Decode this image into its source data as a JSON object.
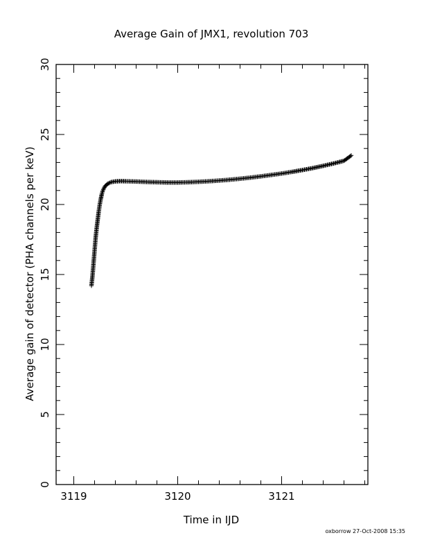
{
  "chart_data": {
    "type": "scatter",
    "title": "Average Gain of JMX1, revolution 703",
    "xlabel": "Time in IJD",
    "ylabel": "Average gain of detector (PHA channels per keV)",
    "xlim": [
      3118.83,
      3121.83
    ],
    "ylim": [
      0,
      30
    ],
    "xticks": [
      3119,
      3120,
      3121
    ],
    "yticks": [
      0,
      5,
      10,
      15,
      20,
      25,
      30
    ],
    "marker": "plus",
    "grid": false,
    "series": [
      {
        "points": [
          [
            3119.17,
            14.2
          ],
          [
            3119.18,
            14.9
          ],
          [
            3119.19,
            15.8
          ],
          [
            3119.2,
            16.7
          ],
          [
            3119.21,
            17.6
          ],
          [
            3119.22,
            18.3
          ],
          [
            3119.23,
            18.9
          ],
          [
            3119.24,
            19.5
          ],
          [
            3119.25,
            20.0
          ],
          [
            3119.26,
            20.4
          ],
          [
            3119.27,
            20.75
          ],
          [
            3119.28,
            21.0
          ],
          [
            3119.3,
            21.3
          ],
          [
            3119.33,
            21.5
          ],
          [
            3119.36,
            21.6
          ],
          [
            3119.4,
            21.65
          ],
          [
            3119.45,
            21.67
          ],
          [
            3119.5,
            21.66
          ],
          [
            3119.6,
            21.64
          ],
          [
            3119.7,
            21.61
          ],
          [
            3119.8,
            21.59
          ],
          [
            3119.9,
            21.57
          ],
          [
            3120.0,
            21.57
          ],
          [
            3120.1,
            21.59
          ],
          [
            3120.2,
            21.62
          ],
          [
            3120.3,
            21.66
          ],
          [
            3120.4,
            21.71
          ],
          [
            3120.5,
            21.77
          ],
          [
            3120.6,
            21.84
          ],
          [
            3120.7,
            21.92
          ],
          [
            3120.8,
            22.01
          ],
          [
            3120.9,
            22.11
          ],
          [
            3121.0,
            22.21
          ],
          [
            3121.1,
            22.33
          ],
          [
            3121.2,
            22.46
          ],
          [
            3121.3,
            22.6
          ],
          [
            3121.4,
            22.76
          ],
          [
            3121.5,
            22.93
          ],
          [
            3121.6,
            23.12
          ],
          [
            3121.67,
            23.5
          ]
        ]
      }
    ]
  },
  "footer": {
    "stamp": "oxborrow 27-Oct-2008 15:35"
  }
}
